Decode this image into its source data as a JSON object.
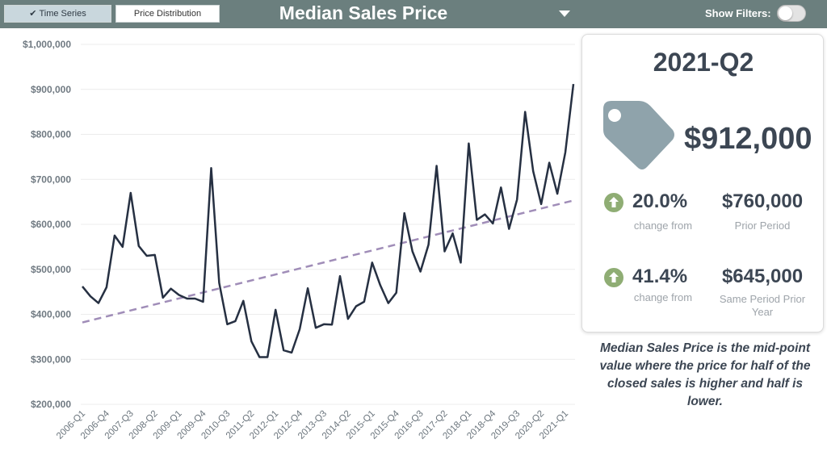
{
  "header": {
    "tabs": [
      {
        "check": "✔",
        "label": "Time Series"
      },
      {
        "label": "Price Distribution"
      }
    ],
    "title": "Median Sales Price",
    "filters_label": "Show Filters:"
  },
  "card": {
    "period": "2021-Q2",
    "price": "$912,000",
    "stats": [
      {
        "pct": "20.0%",
        "pct_label": "change from",
        "value": "$760,000",
        "value_label": "Prior Period"
      },
      {
        "pct": "41.4%",
        "pct_label": "change from",
        "value": "$645,000",
        "value_label": "Same Period Prior Year"
      }
    ]
  },
  "description": "Median Sales Price is the mid-point value where the price for half of the closed sales is higher and half is lower.",
  "colors": {
    "header": "#6b7f7e",
    "line": "#263042",
    "trend": "#a08db8",
    "tag": "#8fa3ab",
    "up": "#8fad74"
  },
  "chart_data": {
    "type": "line",
    "ylim": [
      200000,
      1000000
    ],
    "y_ticks": [
      "$1,000,000",
      "$900,000",
      "$800,000",
      "$700,000",
      "$600,000",
      "$500,000",
      "$400,000",
      "$300,000",
      "$200,000"
    ],
    "y_tick_values": [
      1000000,
      900000,
      800000,
      700000,
      600000,
      500000,
      400000,
      300000,
      200000
    ],
    "x_tick_labels": [
      "2006-Q1",
      "2006-Q4",
      "2007-Q3",
      "2008-Q2",
      "2009-Q1",
      "2009-Q4",
      "2010-Q3",
      "2011-Q2",
      "2012-Q1",
      "2012-Q4",
      "2013-Q3",
      "2014-Q2",
      "2015-Q1",
      "2015-Q4",
      "2016-Q3",
      "2017-Q2",
      "2018-Q1",
      "2018-Q4",
      "2019-Q3",
      "2020-Q2",
      "2021-Q1"
    ],
    "x": [
      "2006-Q1",
      "2006-Q2",
      "2006-Q3",
      "2006-Q4",
      "2007-Q1",
      "2007-Q2",
      "2007-Q3",
      "2007-Q4",
      "2008-Q1",
      "2008-Q2",
      "2008-Q3",
      "2008-Q4",
      "2009-Q1",
      "2009-Q2",
      "2009-Q3",
      "2009-Q4",
      "2010-Q1",
      "2010-Q2",
      "2010-Q3",
      "2010-Q4",
      "2011-Q1",
      "2011-Q2",
      "2011-Q3",
      "2011-Q4",
      "2012-Q1",
      "2012-Q2",
      "2012-Q3",
      "2012-Q4",
      "2013-Q1",
      "2013-Q2",
      "2013-Q3",
      "2013-Q4",
      "2014-Q1",
      "2014-Q2",
      "2014-Q3",
      "2014-Q4",
      "2015-Q1",
      "2015-Q2",
      "2015-Q3",
      "2015-Q4",
      "2016-Q1",
      "2016-Q2",
      "2016-Q3",
      "2016-Q4",
      "2017-Q1",
      "2017-Q2",
      "2017-Q3",
      "2017-Q4",
      "2018-Q1",
      "2018-Q2",
      "2018-Q3",
      "2018-Q4",
      "2019-Q1",
      "2019-Q2",
      "2019-Q3",
      "2019-Q4",
      "2020-Q1",
      "2020-Q2",
      "2020-Q3",
      "2020-Q4",
      "2021-Q1",
      "2021-Q2"
    ],
    "series": [
      {
        "values": [
          462000,
          440000,
          425000,
          460000,
          575000,
          550000,
          670000,
          552000,
          530000,
          532000,
          437000,
          457000,
          443000,
          435000,
          435000,
          428000,
          725000,
          470000,
          378000,
          385000,
          430000,
          340000,
          305000,
          305000,
          410000,
          320000,
          315000,
          367000,
          458000,
          370000,
          378000,
          377000,
          485000,
          390000,
          418000,
          428000,
          515000,
          465000,
          425000,
          448000,
          625000,
          540000,
          495000,
          555000,
          730000,
          540000,
          580000,
          515000,
          780000,
          610000,
          622000,
          602000,
          682000,
          590000,
          655000,
          850000,
          718000,
          645000,
          737000,
          668000,
          760000,
          912000
        ]
      }
    ],
    "trend": {
      "start": 382000,
      "end": 653000
    },
    "grid": true,
    "legend": "none"
  }
}
